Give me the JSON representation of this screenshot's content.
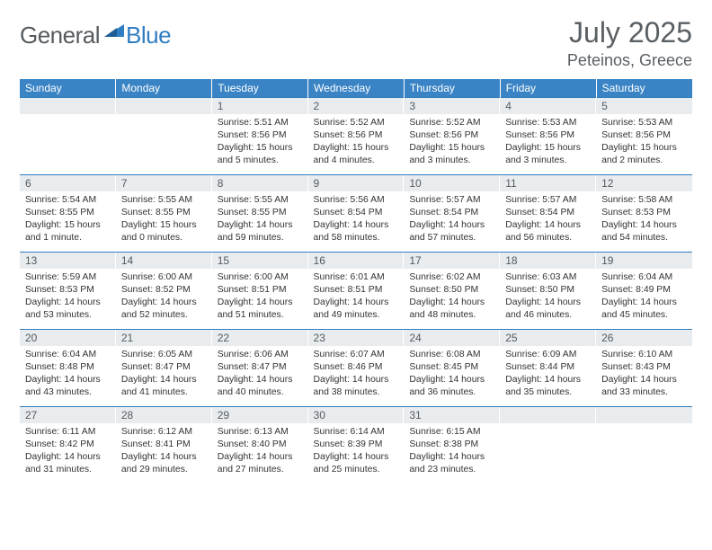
{
  "brand": {
    "text1": "General",
    "text2": "Blue"
  },
  "header": {
    "month_title": "July 2025",
    "location": "Peteinos, Greece"
  },
  "colors": {
    "header_bg": "#3a84c5",
    "daynum_bg": "#e9ecef",
    "rule": "#2f7ec2",
    "text_dark": "#333333",
    "text_muted": "#5a5f63",
    "brand_gray": "#555a5e",
    "brand_blue": "#2f7ec2",
    "page_bg": "#ffffff"
  },
  "typography": {
    "month_title_fontsize": 32,
    "location_fontsize": 18,
    "day_header_fontsize": 12,
    "daynum_fontsize": 12,
    "body_fontsize": 10.4
  },
  "day_headers": [
    "Sunday",
    "Monday",
    "Tuesday",
    "Wednesday",
    "Thursday",
    "Friday",
    "Saturday"
  ],
  "weeks": [
    [
      {
        "num": "",
        "lines": []
      },
      {
        "num": "",
        "lines": []
      },
      {
        "num": "1",
        "lines": [
          "Sunrise: 5:51 AM",
          "Sunset: 8:56 PM",
          "Daylight: 15 hours",
          "and 5 minutes."
        ]
      },
      {
        "num": "2",
        "lines": [
          "Sunrise: 5:52 AM",
          "Sunset: 8:56 PM",
          "Daylight: 15 hours",
          "and 4 minutes."
        ]
      },
      {
        "num": "3",
        "lines": [
          "Sunrise: 5:52 AM",
          "Sunset: 8:56 PM",
          "Daylight: 15 hours",
          "and 3 minutes."
        ]
      },
      {
        "num": "4",
        "lines": [
          "Sunrise: 5:53 AM",
          "Sunset: 8:56 PM",
          "Daylight: 15 hours",
          "and 3 minutes."
        ]
      },
      {
        "num": "5",
        "lines": [
          "Sunrise: 5:53 AM",
          "Sunset: 8:56 PM",
          "Daylight: 15 hours",
          "and 2 minutes."
        ]
      }
    ],
    [
      {
        "num": "6",
        "lines": [
          "Sunrise: 5:54 AM",
          "Sunset: 8:55 PM",
          "Daylight: 15 hours",
          "and 1 minute."
        ]
      },
      {
        "num": "7",
        "lines": [
          "Sunrise: 5:55 AM",
          "Sunset: 8:55 PM",
          "Daylight: 15 hours",
          "and 0 minutes."
        ]
      },
      {
        "num": "8",
        "lines": [
          "Sunrise: 5:55 AM",
          "Sunset: 8:55 PM",
          "Daylight: 14 hours",
          "and 59 minutes."
        ]
      },
      {
        "num": "9",
        "lines": [
          "Sunrise: 5:56 AM",
          "Sunset: 8:54 PM",
          "Daylight: 14 hours",
          "and 58 minutes."
        ]
      },
      {
        "num": "10",
        "lines": [
          "Sunrise: 5:57 AM",
          "Sunset: 8:54 PM",
          "Daylight: 14 hours",
          "and 57 minutes."
        ]
      },
      {
        "num": "11",
        "lines": [
          "Sunrise: 5:57 AM",
          "Sunset: 8:54 PM",
          "Daylight: 14 hours",
          "and 56 minutes."
        ]
      },
      {
        "num": "12",
        "lines": [
          "Sunrise: 5:58 AM",
          "Sunset: 8:53 PM",
          "Daylight: 14 hours",
          "and 54 minutes."
        ]
      }
    ],
    [
      {
        "num": "13",
        "lines": [
          "Sunrise: 5:59 AM",
          "Sunset: 8:53 PM",
          "Daylight: 14 hours",
          "and 53 minutes."
        ]
      },
      {
        "num": "14",
        "lines": [
          "Sunrise: 6:00 AM",
          "Sunset: 8:52 PM",
          "Daylight: 14 hours",
          "and 52 minutes."
        ]
      },
      {
        "num": "15",
        "lines": [
          "Sunrise: 6:00 AM",
          "Sunset: 8:51 PM",
          "Daylight: 14 hours",
          "and 51 minutes."
        ]
      },
      {
        "num": "16",
        "lines": [
          "Sunrise: 6:01 AM",
          "Sunset: 8:51 PM",
          "Daylight: 14 hours",
          "and 49 minutes."
        ]
      },
      {
        "num": "17",
        "lines": [
          "Sunrise: 6:02 AM",
          "Sunset: 8:50 PM",
          "Daylight: 14 hours",
          "and 48 minutes."
        ]
      },
      {
        "num": "18",
        "lines": [
          "Sunrise: 6:03 AM",
          "Sunset: 8:50 PM",
          "Daylight: 14 hours",
          "and 46 minutes."
        ]
      },
      {
        "num": "19",
        "lines": [
          "Sunrise: 6:04 AM",
          "Sunset: 8:49 PM",
          "Daylight: 14 hours",
          "and 45 minutes."
        ]
      }
    ],
    [
      {
        "num": "20",
        "lines": [
          "Sunrise: 6:04 AM",
          "Sunset: 8:48 PM",
          "Daylight: 14 hours",
          "and 43 minutes."
        ]
      },
      {
        "num": "21",
        "lines": [
          "Sunrise: 6:05 AM",
          "Sunset: 8:47 PM",
          "Daylight: 14 hours",
          "and 41 minutes."
        ]
      },
      {
        "num": "22",
        "lines": [
          "Sunrise: 6:06 AM",
          "Sunset: 8:47 PM",
          "Daylight: 14 hours",
          "and 40 minutes."
        ]
      },
      {
        "num": "23",
        "lines": [
          "Sunrise: 6:07 AM",
          "Sunset: 8:46 PM",
          "Daylight: 14 hours",
          "and 38 minutes."
        ]
      },
      {
        "num": "24",
        "lines": [
          "Sunrise: 6:08 AM",
          "Sunset: 8:45 PM",
          "Daylight: 14 hours",
          "and 36 minutes."
        ]
      },
      {
        "num": "25",
        "lines": [
          "Sunrise: 6:09 AM",
          "Sunset: 8:44 PM",
          "Daylight: 14 hours",
          "and 35 minutes."
        ]
      },
      {
        "num": "26",
        "lines": [
          "Sunrise: 6:10 AM",
          "Sunset: 8:43 PM",
          "Daylight: 14 hours",
          "and 33 minutes."
        ]
      }
    ],
    [
      {
        "num": "27",
        "lines": [
          "Sunrise: 6:11 AM",
          "Sunset: 8:42 PM",
          "Daylight: 14 hours",
          "and 31 minutes."
        ]
      },
      {
        "num": "28",
        "lines": [
          "Sunrise: 6:12 AM",
          "Sunset: 8:41 PM",
          "Daylight: 14 hours",
          "and 29 minutes."
        ]
      },
      {
        "num": "29",
        "lines": [
          "Sunrise: 6:13 AM",
          "Sunset: 8:40 PM",
          "Daylight: 14 hours",
          "and 27 minutes."
        ]
      },
      {
        "num": "30",
        "lines": [
          "Sunrise: 6:14 AM",
          "Sunset: 8:39 PM",
          "Daylight: 14 hours",
          "and 25 minutes."
        ]
      },
      {
        "num": "31",
        "lines": [
          "Sunrise: 6:15 AM",
          "Sunset: 8:38 PM",
          "Daylight: 14 hours",
          "and 23 minutes."
        ]
      },
      {
        "num": "",
        "lines": []
      },
      {
        "num": "",
        "lines": []
      }
    ]
  ]
}
